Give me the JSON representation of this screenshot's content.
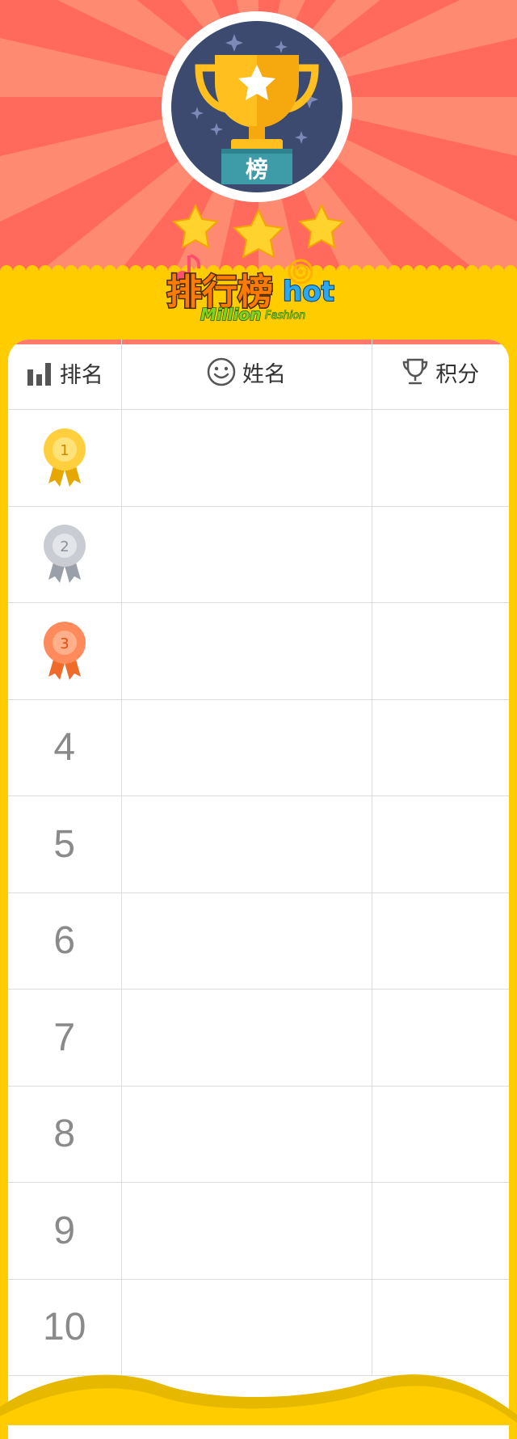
{
  "hero": {
    "badge_label": "榜",
    "star_count": 3
  },
  "logo": {
    "main": "排行榜",
    "hot": "hot",
    "sub1": "Million",
    "sub2": "Fashion"
  },
  "table": {
    "headers": {
      "rank": "排名",
      "name": "姓名",
      "score": "积分"
    },
    "rows": [
      {
        "rank": "1",
        "name": "",
        "score": ""
      },
      {
        "rank": "2",
        "name": "",
        "score": ""
      },
      {
        "rank": "3",
        "name": "",
        "score": ""
      },
      {
        "rank": "4",
        "name": "",
        "score": ""
      },
      {
        "rank": "5",
        "name": "",
        "score": ""
      },
      {
        "rank": "6",
        "name": "",
        "score": ""
      },
      {
        "rank": "7",
        "name": "",
        "score": ""
      },
      {
        "rank": "8",
        "name": "",
        "score": ""
      },
      {
        "rank": "9",
        "name": "",
        "score": ""
      },
      {
        "rank": "10",
        "name": "",
        "score": ""
      }
    ]
  },
  "colors": {
    "background_yellow": "#ffcc00",
    "hero_red": "#ff6a5c",
    "hero_ray": "#ff8a72",
    "badge_navy": "#3b4a6e",
    "trophy_gold": "#ffbf1f",
    "label_teal": "#3d9ca8",
    "gold_medal": "#ffcf3d",
    "silver_medal": "#c9ccd2",
    "bronze_medal": "#ff8a5c"
  },
  "icons": {
    "rank_header": "bar-chart-icon",
    "name_header": "smiley-icon",
    "score_header": "trophy-icon",
    "badge": "trophy-badge-icon"
  }
}
